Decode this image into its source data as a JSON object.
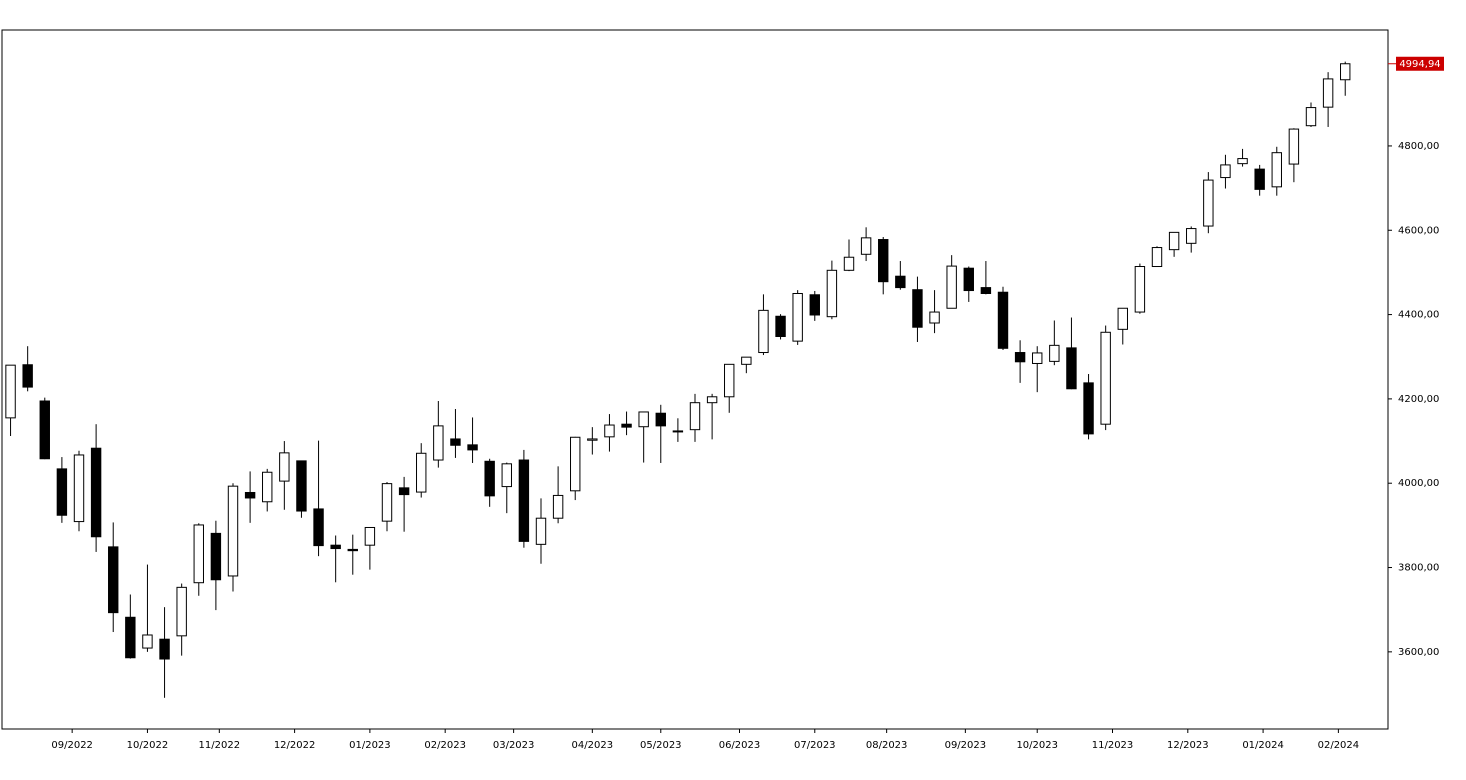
{
  "chart_data": {
    "type": "candlestick",
    "open": [
      4155,
      4281,
      4195,
      4034,
      3909,
      4083,
      3849,
      3682,
      3609,
      3630,
      3638,
      3764,
      3881,
      3780,
      3978,
      3956,
      4005,
      4053,
      3939,
      3853,
      3843,
      3853,
      3910,
      3989,
      3979,
      4055,
      4105,
      4091,
      4052,
      3992,
      4055,
      3855,
      3917,
      3982,
      4102,
      4110,
      4140,
      4134,
      4166,
      4124,
      4127,
      4191,
      4205,
      4282,
      4310,
      4396,
      4337,
      4447,
      4395,
      4505,
      4543,
      4578,
      4491,
      4459,
      4380,
      4415,
      4510,
      4464,
      4453,
      4310,
      4284,
      4289,
      4321,
      4238,
      4140,
      4365,
      4406,
      4514,
      4554,
      4569,
      4610,
      4725,
      4758,
      4745,
      4703,
      4757,
      4848,
      4892,
      4957
    ],
    "high": [
      4280,
      4325,
      4203,
      4062,
      4077,
      4140,
      3907,
      3736,
      3807,
      3706,
      3762,
      3905,
      3911,
      4000,
      4028,
      4034,
      4100,
      4053,
      4101,
      3876,
      3878,
      3895,
      4003,
      4015,
      4095,
      4195,
      4176,
      4156,
      4058,
      4049,
      4079,
      3964,
      4040,
      4110,
      4133,
      4164,
      4170,
      4170,
      4186,
      4154,
      4212,
      4212,
      4281,
      4298,
      4448,
      4401,
      4458,
      4456,
      4528,
      4578,
      4607,
      4584,
      4527,
      4490,
      4458,
      4541,
      4514,
      4527,
      4466,
      4339,
      4325,
      4386,
      4393,
      4259,
      4374,
      4415,
      4521,
      4562,
      4595,
      4609,
      4738,
      4779,
      4793,
      4755,
      4798,
      4842,
      4903,
      4975,
      5000
    ],
    "low": [
      4112,
      4218,
      4057,
      3906,
      3886,
      3837,
      3647,
      3584,
      3600,
      3491,
      3591,
      3733,
      3699,
      3743,
      3906,
      3933,
      3937,
      3918,
      3827,
      3765,
      3783,
      3795,
      3886,
      3885,
      3966,
      4037,
      4060,
      4048,
      3944,
      3929,
      3847,
      3809,
      3905,
      3960,
      4068,
      4075,
      4114,
      4049,
      4048,
      4098,
      4098,
      4104,
      4167,
      4261,
      4304,
      4341,
      4328,
      4385,
      4389,
      4503,
      4527,
      4448,
      4459,
      4335,
      4356,
      4415,
      4430,
      4448,
      4316,
      4238,
      4216,
      4280,
      4223,
      4104,
      4126,
      4329,
      4402,
      4514,
      4537,
      4547,
      4593,
      4699,
      4751,
      4682,
      4682,
      4714,
      4845,
      4845,
      4919
    ],
    "close": [
      4280,
      4228,
      4058,
      3924,
      4067,
      3873,
      3693,
      3586,
      3640,
      3583,
      3753,
      3901,
      3771,
      3993,
      3965,
      4026,
      4072,
      3934,
      3852,
      3845,
      3840,
      3895,
      3999,
      3973,
      4071,
      4136,
      4090,
      4079,
      3970,
      4046,
      3862,
      3917,
      3971,
      4109,
      4105,
      4138,
      4133,
      4169,
      4136,
      4124,
      4191,
      4205,
      4282,
      4299,
      4410,
      4348,
      4450,
      4399,
      4505,
      4536,
      4582,
      4478,
      4464,
      4370,
      4406,
      4515,
      4457,
      4450,
      4320,
      4288,
      4309,
      4327,
      4224,
      4117,
      4358,
      4415,
      4514,
      4559,
      4595,
      4604,
      4719,
      4755,
      4770,
      4697,
      4784,
      4840,
      4891,
      4959,
      4994.94
    ],
    "up_color": "#ffffff",
    "down_color": "#000000",
    "line_color": "#000000",
    "last_label": {
      "value": 4994.94,
      "label": "4994,94"
    },
    "last_label_color": "#cc0000",
    "xlim": [
      -0.5,
      80.5
    ],
    "xticks": [
      {
        "value": 3.6,
        "label": "09/2022"
      },
      {
        "value": 8.0,
        "label": "10/2022"
      },
      {
        "value": 12.2,
        "label": "11/2022"
      },
      {
        "value": 16.6,
        "label": "12/2022"
      },
      {
        "value": 21.0,
        "label": "01/2023"
      },
      {
        "value": 25.4,
        "label": "02/2023"
      },
      {
        "value": 29.4,
        "label": "03/2023"
      },
      {
        "value": 34.0,
        "label": "04/2023"
      },
      {
        "value": 38.0,
        "label": "05/2023"
      },
      {
        "value": 42.6,
        "label": "06/2023"
      },
      {
        "value": 47.0,
        "label": "07/2023"
      },
      {
        "value": 51.2,
        "label": "08/2023"
      },
      {
        "value": 55.8,
        "label": "09/2023"
      },
      {
        "value": 60.0,
        "label": "10/2023"
      },
      {
        "value": 64.4,
        "label": "11/2023"
      },
      {
        "value": 68.8,
        "label": "12/2023"
      },
      {
        "value": 73.2,
        "label": "01/2024"
      },
      {
        "value": 77.6,
        "label": "02/2024"
      }
    ],
    "ylim": [
      3417,
      5075
    ],
    "yticks": [
      {
        "value": 3600,
        "label": "3600,00"
      },
      {
        "value": 3800,
        "label": "3800,00"
      },
      {
        "value": 4000,
        "label": "4000,00"
      },
      {
        "value": 4200,
        "label": "4200,00"
      },
      {
        "value": 4400,
        "label": "4400,00"
      },
      {
        "value": 4600,
        "label": "4600,00"
      },
      {
        "value": 4800,
        "label": "4800,00"
      }
    ]
  }
}
